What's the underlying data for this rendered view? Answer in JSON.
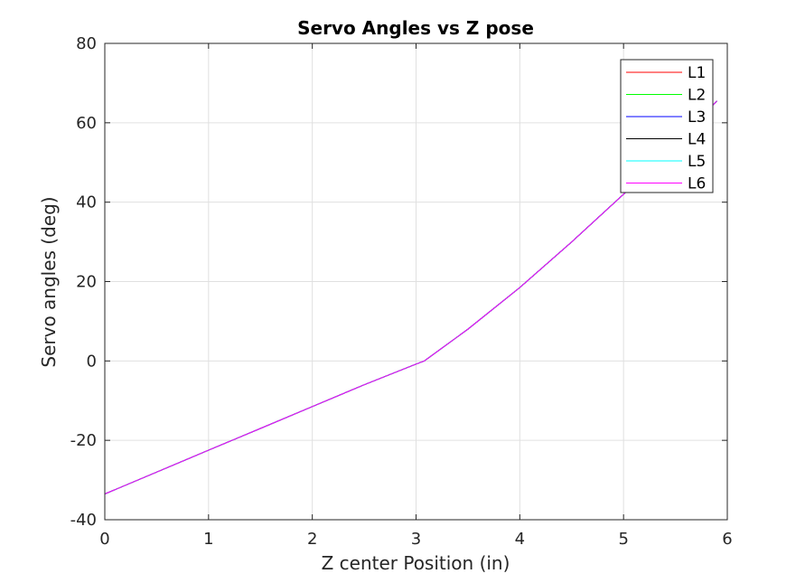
{
  "chart_data": {
    "type": "line",
    "title": "Servo Angles vs Z pose",
    "xlabel": "Z center Position (in)",
    "ylabel": "Servo angles (deg)",
    "xlim": [
      0,
      6
    ],
    "ylim": [
      -40,
      80
    ],
    "xticks": [
      "0",
      "1",
      "2",
      "3",
      "4",
      "5",
      "6"
    ],
    "yticks": [
      "-40",
      "-20",
      "0",
      "20",
      "40",
      "60",
      "80"
    ],
    "grid": true,
    "legend_position": "top-right",
    "x": [
      0,
      0.5,
      1.0,
      1.5,
      2.0,
      2.5,
      3.0,
      3.08,
      3.5,
      4.0,
      4.5,
      5.0,
      5.5,
      5.9
    ],
    "series": [
      {
        "name": "L1",
        "color": "#ff0000",
        "values": [
          -33.5,
          -28.0,
          -22.5,
          -17.0,
          -11.5,
          -6.0,
          -0.8,
          0.0,
          8.0,
          18.5,
          30.0,
          42.0,
          54.5,
          65.5
        ]
      },
      {
        "name": "L2",
        "color": "#00ff00",
        "values": [
          -33.5,
          -28.0,
          -22.5,
          -17.0,
          -11.5,
          -6.0,
          -0.8,
          0.0,
          8.0,
          18.5,
          30.0,
          42.0,
          54.5,
          65.5
        ]
      },
      {
        "name": "L3",
        "color": "#0000ff",
        "values": [
          -33.5,
          -28.0,
          -22.5,
          -17.0,
          -11.5,
          -6.0,
          -0.8,
          0.0,
          8.0,
          18.5,
          30.0,
          42.0,
          54.5,
          65.5
        ]
      },
      {
        "name": "L4",
        "color": "#000000",
        "values": [
          -33.5,
          -28.0,
          -22.5,
          -17.0,
          -11.5,
          -6.0,
          -0.8,
          0.0,
          8.0,
          18.5,
          30.0,
          42.0,
          54.5,
          65.5
        ]
      },
      {
        "name": "L5",
        "color": "#00ffff",
        "values": [
          -33.5,
          -28.0,
          -22.5,
          -17.0,
          -11.5,
          -6.0,
          -0.8,
          0.0,
          8.0,
          18.5,
          30.0,
          42.0,
          54.5,
          65.5
        ]
      },
      {
        "name": "L6",
        "color": "#ff00ff",
        "values": [
          -33.5,
          -28.0,
          -22.5,
          -17.0,
          -11.5,
          -6.0,
          -0.8,
          0.0,
          8.0,
          18.5,
          30.0,
          42.0,
          54.5,
          65.5
        ]
      }
    ]
  }
}
